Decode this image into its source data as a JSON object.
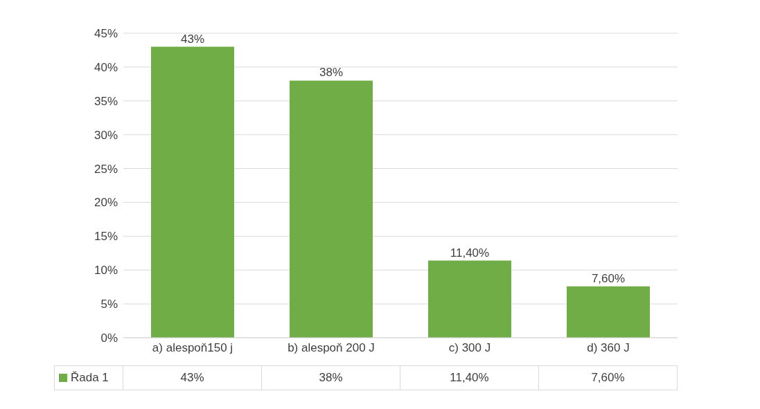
{
  "chart_data": {
    "type": "bar",
    "categories": [
      "a) alespoň150 j",
      "b) alespoň 200 J",
      "c) 300 J",
      "d) 360 J"
    ],
    "series": [
      {
        "name": "Řada 1",
        "color": "#70ad47",
        "values": [
          43,
          38,
          11.4,
          7.6
        ],
        "value_labels": [
          "43%",
          "38%",
          "11,40%",
          "7,60%"
        ]
      }
    ],
    "ylim": [
      0,
      45
    ],
    "yticks": [
      {
        "value": 0,
        "label": "0%"
      },
      {
        "value": 5,
        "label": "5%"
      },
      {
        "value": 10,
        "label": "10%"
      },
      {
        "value": 15,
        "label": "15%"
      },
      {
        "value": 20,
        "label": "20%"
      },
      {
        "value": 25,
        "label": "25%"
      },
      {
        "value": 30,
        "label": "30%"
      },
      {
        "value": 35,
        "label": "35%"
      },
      {
        "value": 40,
        "label": "40%"
      },
      {
        "value": 45,
        "label": "45%"
      }
    ],
    "grid": "y"
  }
}
